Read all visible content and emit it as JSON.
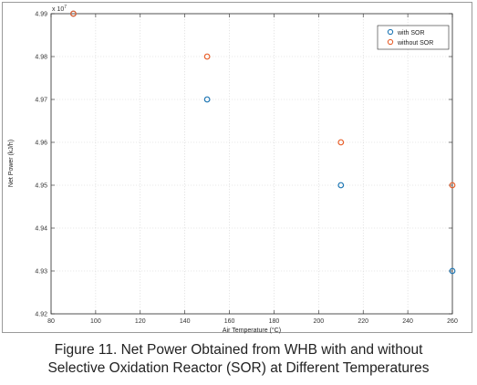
{
  "caption": {
    "line1": "Figure 11. Net Power Obtained from WHB with and without",
    "line2": "Selective Oxidation Reactor (SOR) at Different Temperatures"
  },
  "chart_data": {
    "type": "scatter",
    "title": "",
    "xlabel": "Air Temperature (°C)",
    "ylabel": "Net Power (kJ/h)",
    "y_exponent_label": "x 10",
    "y_exponent": "7",
    "xlim": [
      80,
      260
    ],
    "ylim": [
      4.92,
      4.99
    ],
    "x_ticks": [
      80,
      100,
      120,
      140,
      160,
      180,
      200,
      220,
      240,
      260
    ],
    "y_ticks": [
      4.92,
      4.93,
      4.94,
      4.95,
      4.96,
      4.97,
      4.98,
      4.99
    ],
    "x_tick_labels": [
      "80",
      "100",
      "120",
      "140",
      "160",
      "180",
      "200",
      "220",
      "240",
      "260"
    ],
    "y_tick_labels": [
      "4.92",
      "4.93",
      "4.94",
      "4.95",
      "4.96",
      "4.97",
      "4.98",
      "4.99"
    ],
    "grid": true,
    "legend_position": "top-right",
    "series": [
      {
        "name": "with SOR",
        "color": "#1f77b4",
        "x": [
          90,
          150,
          210,
          260
        ],
        "y": [
          4.99,
          4.97,
          4.95,
          4.93
        ]
      },
      {
        "name": "without SOR",
        "color": "#e8602c",
        "x": [
          90,
          150,
          210,
          260
        ],
        "y": [
          4.99,
          4.98,
          4.96,
          4.95
        ]
      }
    ]
  }
}
